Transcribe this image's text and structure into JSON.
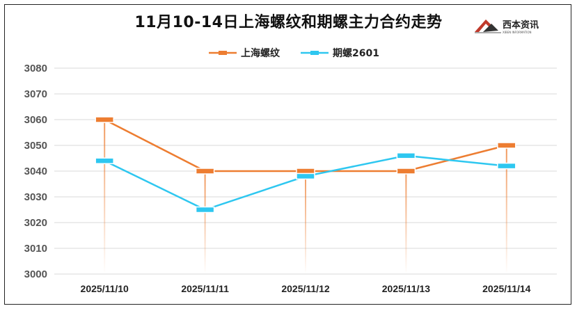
{
  "chart_data": {
    "type": "line",
    "title": "11月10-14日上海螺纹和期螺主力合约走势",
    "categories": [
      "2025/11/10",
      "2025/11/11",
      "2025/11/12",
      "2025/11/13",
      "2025/11/14"
    ],
    "series": [
      {
        "name": "上海螺纹",
        "values": [
          3060,
          3040,
          3040,
          3040,
          3050
        ],
        "color": "#ED7D31"
      },
      {
        "name": "期螺2601",
        "values": [
          3044,
          3025,
          3038,
          3046,
          3042
        ],
        "color": "#2EC7F0"
      }
    ],
    "ylim": [
      3000,
      3080
    ],
    "yticks": [
      3000,
      3010,
      3020,
      3030,
      3040,
      3050,
      3060,
      3070,
      3080
    ],
    "grid": true,
    "legend_position": "top-center"
  },
  "logo": {
    "text": "西本资讯",
    "subtext": "XIBEN INFORMATION",
    "icon": "xiben-logo-icon"
  }
}
